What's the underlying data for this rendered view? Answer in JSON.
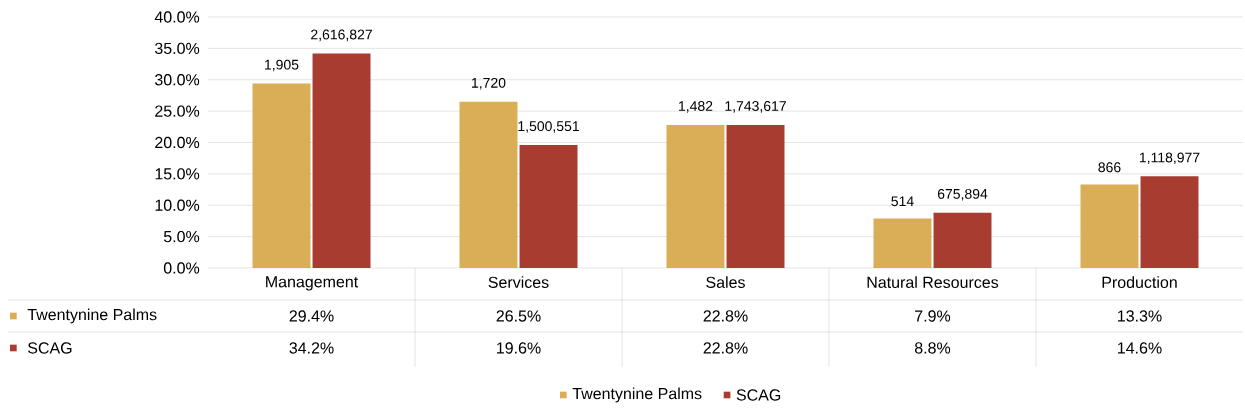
{
  "chart_data": {
    "type": "bar",
    "categories": [
      "Management",
      "Services",
      "Sales",
      "Natural Resources",
      "Production"
    ],
    "series": [
      {
        "name": "Twentynine Palms",
        "color": "#d9ae57",
        "values": [
          29.4,
          26.5,
          22.8,
          7.9,
          13.3
        ],
        "value_labels": [
          "29.4%",
          "26.5%",
          "22.8%",
          "7.9%",
          "13.3%"
        ]
      },
      {
        "name": "SCAG",
        "color": "#a83c31",
        "values": [
          34.2,
          19.6,
          22.8,
          8.8,
          14.6
        ],
        "value_labels": [
          "34.2%",
          "19.6%",
          "22.8%",
          "8.8%",
          "14.6%"
        ]
      }
    ],
    "annotations": [
      {
        "text": "1,905",
        "x": "Management",
        "y": 29.4
      },
      {
        "text": "2,616,827",
        "x": "Management",
        "y": 34.2
      },
      {
        "text": "1,720",
        "x": "Services",
        "y": 26.5
      },
      {
        "text": "1,500,551",
        "x": "Services",
        "y": 19.6
      },
      {
        "text": "1,482",
        "x": "Sales",
        "y": 22.8
      },
      {
        "text": "1,743,617",
        "x": "Sales",
        "y": 22.8
      },
      {
        "text": "514",
        "x": "Natural Resources",
        "y": 7.9
      },
      {
        "text": "675,894",
        "x": "Natural Resources",
        "y": 8.8
      },
      {
        "text": "866",
        "x": "Production",
        "y": 13.3
      },
      {
        "text": "1,118,977",
        "x": "Production",
        "y": 14.6
      }
    ],
    "ylim": [
      0,
      40
    ],
    "yticks": [
      {
        "value": 0,
        "label": "0.0%"
      },
      {
        "value": 5,
        "label": "5.0%"
      },
      {
        "value": 10,
        "label": "10.0%"
      },
      {
        "value": 15,
        "label": "15.0%"
      },
      {
        "value": 20,
        "label": "20.0%"
      },
      {
        "value": 25,
        "label": "25.0%"
      },
      {
        "value": 30,
        "label": "30.0%"
      },
      {
        "value": 35,
        "label": "35.0%"
      },
      {
        "value": 40,
        "label": "40.0%"
      }
    ],
    "grid": "y",
    "legend": "bottom"
  }
}
